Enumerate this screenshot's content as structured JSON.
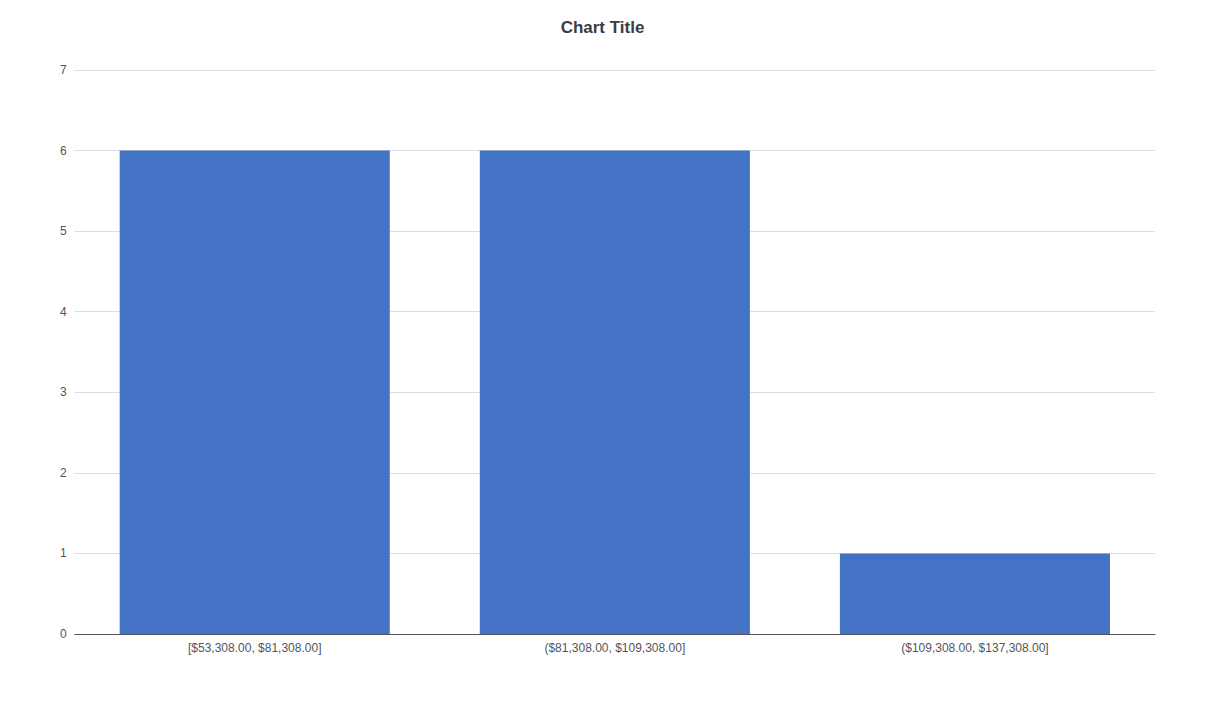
{
  "chart_data": {
    "type": "bar",
    "title": "Chart Title",
    "categories": [
      "[$53,308.00, $81,308.00]",
      "($81,308.00, $109,308.00]",
      "($109,308.00, $137,308.00]"
    ],
    "values": [
      6,
      6,
      1
    ],
    "color": "#4472C4",
    "ylim": [
      0,
      7
    ],
    "yticks": [
      0,
      1,
      2,
      3,
      4,
      5,
      6,
      7
    ],
    "grid": true
  }
}
